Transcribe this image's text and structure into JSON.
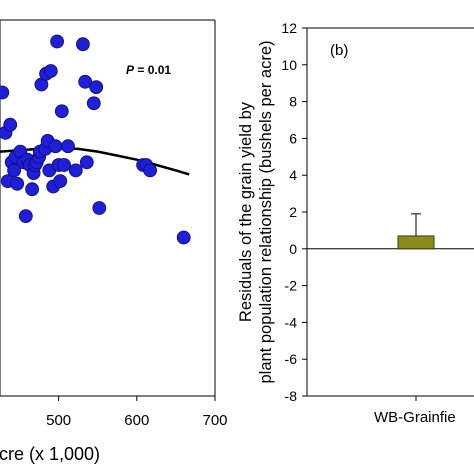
{
  "chart_data": [
    {
      "type": "scatter",
      "xlabel": "cre (x 1,000)",
      "ylabel": "",
      "annotation": {
        "italic": "P",
        "rest": " = 0.01"
      },
      "xticks": [
        "500",
        "600",
        "700"
      ],
      "xlim": [
        425,
        700
      ],
      "ylim": [
        -2,
        12
      ],
      "points": [
        {
          "x": 428,
          "y": 9.3
        },
        {
          "x": 432,
          "y": 7.8
        },
        {
          "x": 435,
          "y": 6.0
        },
        {
          "x": 438,
          "y": 8.1
        },
        {
          "x": 440,
          "y": 6.7
        },
        {
          "x": 443,
          "y": 6.4
        },
        {
          "x": 445,
          "y": 6.9
        },
        {
          "x": 447,
          "y": 5.9
        },
        {
          "x": 451,
          "y": 7.1
        },
        {
          "x": 455,
          "y": 6.7
        },
        {
          "x": 458,
          "y": 4.7
        },
        {
          "x": 460,
          "y": 6.8
        },
        {
          "x": 463,
          "y": 6.6
        },
        {
          "x": 466,
          "y": 5.7
        },
        {
          "x": 468,
          "y": 6.3
        },
        {
          "x": 470,
          "y": 6.6
        },
        {
          "x": 472,
          "y": 6.7
        },
        {
          "x": 475,
          "y": 6.9
        },
        {
          "x": 476,
          "y": 7.1
        },
        {
          "x": 478,
          "y": 9.6
        },
        {
          "x": 483,
          "y": 7.2
        },
        {
          "x": 484,
          "y": 10.0
        },
        {
          "x": 486,
          "y": 7.5
        },
        {
          "x": 488,
          "y": 6.4
        },
        {
          "x": 490,
          "y": 10.1
        },
        {
          "x": 493,
          "y": 5.8
        },
        {
          "x": 496,
          "y": 7.3
        },
        {
          "x": 498,
          "y": 11.2
        },
        {
          "x": 500,
          "y": 6.6
        },
        {
          "x": 502,
          "y": 6.0
        },
        {
          "x": 504,
          "y": 8.6
        },
        {
          "x": 507,
          "y": 6.6
        },
        {
          "x": 512,
          "y": 7.3
        },
        {
          "x": 522,
          "y": 6.4
        },
        {
          "x": 531,
          "y": 11.1
        },
        {
          "x": 534,
          "y": 9.7
        },
        {
          "x": 536,
          "y": 6.7
        },
        {
          "x": 545,
          "y": 8.9
        },
        {
          "x": 548,
          "y": 9.5
        },
        {
          "x": 552,
          "y": 5.0
        },
        {
          "x": 608,
          "y": 6.6
        },
        {
          "x": 612,
          "y": 6.6
        },
        {
          "x": 617,
          "y": 6.4
        },
        {
          "x": 660,
          "y": 3.9
        }
      ],
      "trend": [
        {
          "x": 425,
          "y": 7.1
        },
        {
          "x": 450,
          "y": 7.15
        },
        {
          "x": 475,
          "y": 7.2
        },
        {
          "x": 500,
          "y": 7.22
        },
        {
          "x": 525,
          "y": 7.2
        },
        {
          "x": 550,
          "y": 7.1
        },
        {
          "x": 575,
          "y": 6.95
        },
        {
          "x": 600,
          "y": 6.8
        },
        {
          "x": 625,
          "y": 6.6
        },
        {
          "x": 650,
          "y": 6.4
        },
        {
          "x": 667,
          "y": 6.25
        }
      ],
      "colors": {
        "point": "#1f1fd8",
        "point_edge": "#0b0b78",
        "trend": "#000000"
      }
    },
    {
      "type": "bar",
      "panel_label": "(b)",
      "ylabel_lines": [
        "Residuals of the grain yield by",
        "plant population relationship (bushels per acre)"
      ],
      "yticks": [
        "12",
        "10",
        "8",
        "6",
        "4",
        "2",
        "0",
        "-2",
        "-4",
        "-6",
        "-8"
      ],
      "ylim": [
        -8,
        12
      ],
      "categories": [
        "WB-Grainfie"
      ],
      "values": [
        0.7
      ],
      "error": [
        1.2
      ],
      "colors": {
        "bar": "#8b8b1a",
        "bar_edge": "#3d3d0a"
      }
    }
  ]
}
